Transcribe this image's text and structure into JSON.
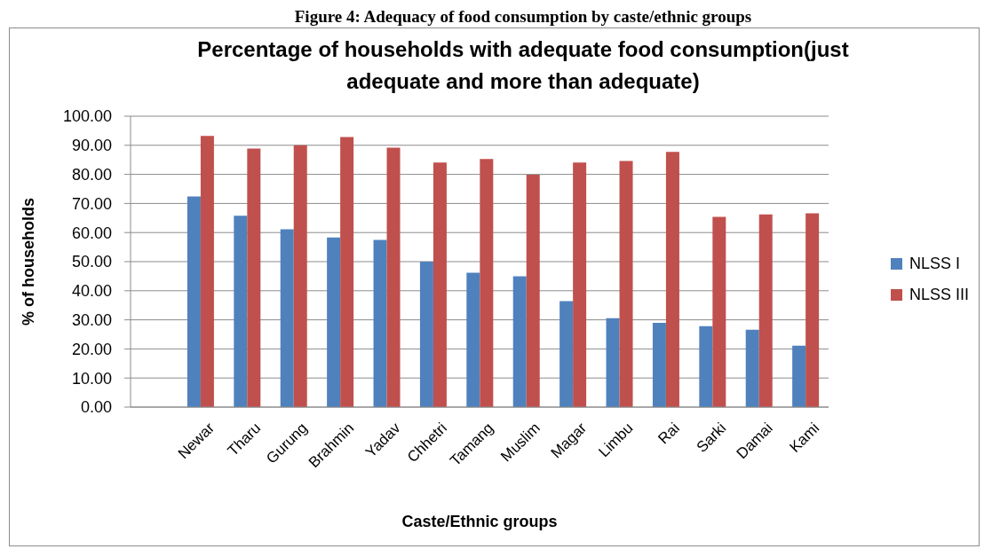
{
  "chart_data": {
    "type": "bar",
    "title": "Percentage of households with adequate food consumption(just adequate and more than adequate)",
    "xlabel": "Caste/Ethnic groups",
    "ylabel": "% of households",
    "annotations": [
      "Figure 4: Adequacy of food consumption by caste/ethnic groups"
    ],
    "categories": [
      null,
      "Newar",
      "Tharu",
      "Gurung",
      "Brahmin",
      "Yadav",
      "Chhetri",
      "Tamang",
      "Muslim",
      "Magar",
      "Limbu",
      "Rai",
      "Sarki",
      "Damai",
      "Kami"
    ],
    "series": [
      {
        "name": "NLSS I",
        "color": "#4f81bd",
        "values": [
          null,
          72.4,
          65.8,
          61.1,
          58.3,
          57.5,
          50.0,
          46.2,
          45.0,
          36.4,
          30.6,
          29.0,
          27.8,
          26.6,
          21.1
        ]
      },
      {
        "name": "NLSS III",
        "color": "#c0504d",
        "values": [
          null,
          93.2,
          88.9,
          90.0,
          92.8,
          89.2,
          84.1,
          85.3,
          79.9,
          84.1,
          84.6,
          87.7,
          65.4,
          66.2,
          66.6
        ]
      }
    ],
    "ylim": [
      0,
      100
    ],
    "yticks": [
      {
        "value": 0,
        "label": "0.00"
      },
      {
        "value": 10,
        "label": "10.00"
      },
      {
        "value": 20,
        "label": "20.00"
      },
      {
        "value": 30,
        "label": "30.00"
      },
      {
        "value": 40,
        "label": "40.00"
      },
      {
        "value": 50,
        "label": "50.00"
      },
      {
        "value": 60,
        "label": "60.00"
      },
      {
        "value": 70,
        "label": "70.00"
      },
      {
        "value": 80,
        "label": "80.00"
      },
      {
        "value": 90,
        "label": "90.00"
      },
      {
        "value": 100,
        "label": "100.00"
      }
    ],
    "grid": "y",
    "legend": "right"
  }
}
